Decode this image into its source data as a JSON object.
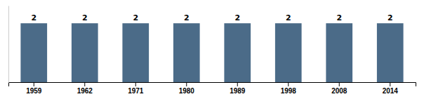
{
  "chart_data": {
    "type": "bar",
    "categories": [
      "1959",
      "1962",
      "1971",
      "1980",
      "1989",
      "1998",
      "2008",
      "2014"
    ],
    "values": [
      2,
      2,
      2,
      2,
      2,
      2,
      2,
      2
    ],
    "color": "#4B6B88",
    "ylim": [
      0,
      2.6
    ],
    "data_labels": true,
    "tick_labels": "x",
    "grid": false
  }
}
